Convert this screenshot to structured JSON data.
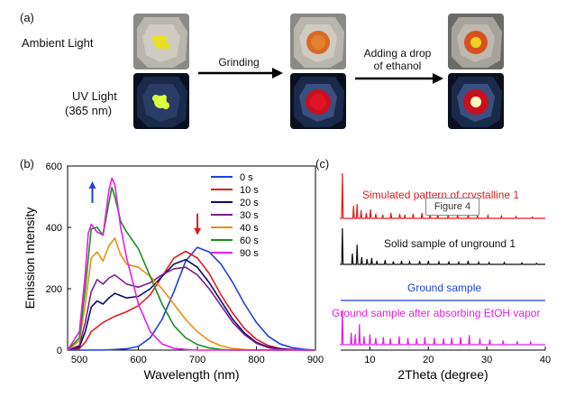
{
  "figure": {
    "panel_a_label": "(a)",
    "panel_b_label": "(b)",
    "panel_c_label": "(c)",
    "row_ambient": "Ambient Light",
    "row_uv_line1": "UV Light",
    "row_uv_line2": "(365 nm)",
    "step1": "Grinding",
    "step2_line1": "Adding a drop",
    "step2_line2": "of ethanol",
    "tooltip": "Figure 4"
  },
  "chart_data": [
    {
      "type": "line",
      "xlabel": "Wavelength (nm)",
      "ylabel": "Emission Intensity",
      "xlim": [
        480,
        900
      ],
      "ylim": [
        0,
        600
      ],
      "xticks": [
        "500",
        "600",
        "700",
        "800",
        "900"
      ],
      "yticks": [
        "0",
        "200",
        "400",
        "600"
      ],
      "legend_position": "top-right",
      "series": [
        {
          "name": "0 s",
          "color": "#1f3fe0",
          "x": [
            480,
            540,
            580,
            600,
            620,
            640,
            660,
            680,
            700,
            720,
            740,
            760,
            780,
            800,
            820,
            840,
            860,
            880,
            900
          ],
          "y": [
            0,
            0,
            4,
            12,
            40,
            100,
            190,
            290,
            335,
            320,
            280,
            220,
            150,
            90,
            45,
            20,
            8,
            3,
            0
          ]
        },
        {
          "name": "10 s",
          "color": "#e01e1e",
          "x": [
            480,
            500,
            510,
            520,
            540,
            560,
            580,
            600,
            620,
            640,
            660,
            680,
            700,
            720,
            740,
            760,
            780,
            800,
            820,
            840,
            860,
            880,
            900
          ],
          "y": [
            0,
            5,
            25,
            60,
            90,
            110,
            125,
            145,
            180,
            240,
            300,
            322,
            300,
            250,
            180,
            120,
            70,
            35,
            15,
            5,
            2,
            0,
            0
          ]
        },
        {
          "name": "20 s",
          "color": "#0a0a70",
          "x": [
            480,
            500,
            510,
            520,
            530,
            540,
            550,
            560,
            580,
            600,
            620,
            640,
            660,
            680,
            700,
            720,
            740,
            760,
            780,
            800,
            820,
            840,
            860,
            900
          ],
          "y": [
            0,
            10,
            60,
            140,
            160,
            150,
            170,
            185,
            170,
            175,
            200,
            240,
            280,
            295,
            270,
            220,
            160,
            100,
            55,
            25,
            10,
            4,
            1,
            0
          ]
        },
        {
          "name": "30 s",
          "color": "#7a1f8a",
          "x": [
            480,
            500,
            510,
            520,
            530,
            540,
            550,
            560,
            580,
            600,
            620,
            640,
            660,
            680,
            700,
            720,
            740,
            760,
            780,
            800,
            820,
            840,
            900
          ],
          "y": [
            0,
            15,
            90,
            190,
            230,
            215,
            235,
            245,
            215,
            205,
            220,
            245,
            265,
            270,
            245,
            200,
            145,
            90,
            50,
            22,
            8,
            2,
            0
          ]
        },
        {
          "name": "40 s",
          "color": "#f08c10",
          "x": [
            480,
            500,
            510,
            520,
            530,
            540,
            550,
            560,
            570,
            580,
            600,
            620,
            640,
            660,
            680,
            700,
            720,
            740,
            760,
            780,
            800,
            820,
            900
          ],
          "y": [
            0,
            30,
            150,
            300,
            320,
            290,
            340,
            365,
            310,
            280,
            270,
            240,
            200,
            150,
            100,
            60,
            30,
            14,
            5,
            2,
            0,
            0,
            0
          ]
        },
        {
          "name": "60 s",
          "color": "#1e8c1e",
          "x": [
            480,
            500,
            510,
            520,
            530,
            540,
            550,
            555,
            560,
            570,
            580,
            600,
            620,
            640,
            660,
            680,
            700,
            720,
            740,
            760,
            780,
            800,
            900
          ],
          "y": [
            0,
            40,
            200,
            395,
            400,
            375,
            480,
            530,
            500,
            420,
            385,
            330,
            240,
            150,
            80,
            40,
            18,
            7,
            2,
            0,
            0,
            0,
            0
          ]
        },
        {
          "name": "90 s",
          "color": "#e61ee6",
          "x": [
            480,
            500,
            510,
            515,
            520,
            530,
            540,
            550,
            555,
            560,
            570,
            580,
            600,
            620,
            640,
            660,
            680,
            700,
            720,
            900
          ],
          "y": [
            0,
            60,
            250,
            380,
            410,
            385,
            375,
            520,
            560,
            540,
            400,
            300,
            150,
            60,
            20,
            6,
            2,
            0,
            0,
            0
          ]
        }
      ]
    },
    {
      "type": "line",
      "xlabel": "2Theta (degree)",
      "xlim": [
        5,
        40
      ],
      "xticks": [
        "10",
        "20",
        "30",
        "40"
      ],
      "series": [
        {
          "name": "Simulated pattern of crystalline 1",
          "color": "#e01e1e",
          "x": [
            5,
            5.3,
            7.2,
            7.8,
            8.5,
            9.4,
            10.1,
            11,
            12.2,
            13.6,
            15.1,
            16,
            17.4,
            18.9,
            20.3,
            21.6,
            23.4,
            25,
            26.8,
            28.4,
            30.2,
            32.5,
            35,
            37.8
          ],
          "y": [
            0,
            1,
            0.28,
            0.32,
            0.18,
            0.12,
            0.2,
            0.1,
            0.08,
            0.12,
            0.1,
            0.08,
            0.1,
            0.12,
            0.08,
            0.1,
            0.07,
            0.08,
            0.1,
            0.07,
            0.06,
            0.05,
            0.04,
            0.03
          ]
        },
        {
          "name": "Solid sample of unground 1",
          "color": "#111111",
          "x": [
            5,
            5.3,
            7,
            7.8,
            8.6,
            9.5,
            10.3,
            11.2,
            12.6,
            14,
            15.4,
            16.8,
            18.5,
            20,
            21.8,
            23.5,
            25.2,
            26.8,
            28.6,
            30.4,
            33,
            36,
            38.5
          ],
          "y": [
            0,
            1,
            0.3,
            0.55,
            0.2,
            0.15,
            0.18,
            0.1,
            0.12,
            0.08,
            0.1,
            0.07,
            0.09,
            0.1,
            0.07,
            0.08,
            0.06,
            0.1,
            0.06,
            0.05,
            0.05,
            0.04,
            0.03
          ]
        },
        {
          "name": "Ground sample",
          "color": "#1f3fe0",
          "x": [
            5,
            40
          ],
          "y": [
            0,
            0
          ]
        },
        {
          "name": "Ground sample after absorbing EtOH vapor",
          "color": "#e61ee6",
          "x": [
            5,
            5.3,
            6.8,
            7.5,
            8.2,
            9,
            10,
            11,
            12.3,
            13.5,
            15,
            16.5,
            18,
            19.4,
            21,
            22.6,
            24,
            25.5,
            27,
            28.8,
            30.5,
            32.8,
            35.2,
            37.5
          ],
          "y": [
            0,
            1,
            0.35,
            0.3,
            0.6,
            0.25,
            0.3,
            0.2,
            0.22,
            0.18,
            0.25,
            0.2,
            0.18,
            0.22,
            0.2,
            0.18,
            0.2,
            0.22,
            0.28,
            0.18,
            0.15,
            0.12,
            0.1,
            0.08
          ]
        }
      ]
    }
  ]
}
